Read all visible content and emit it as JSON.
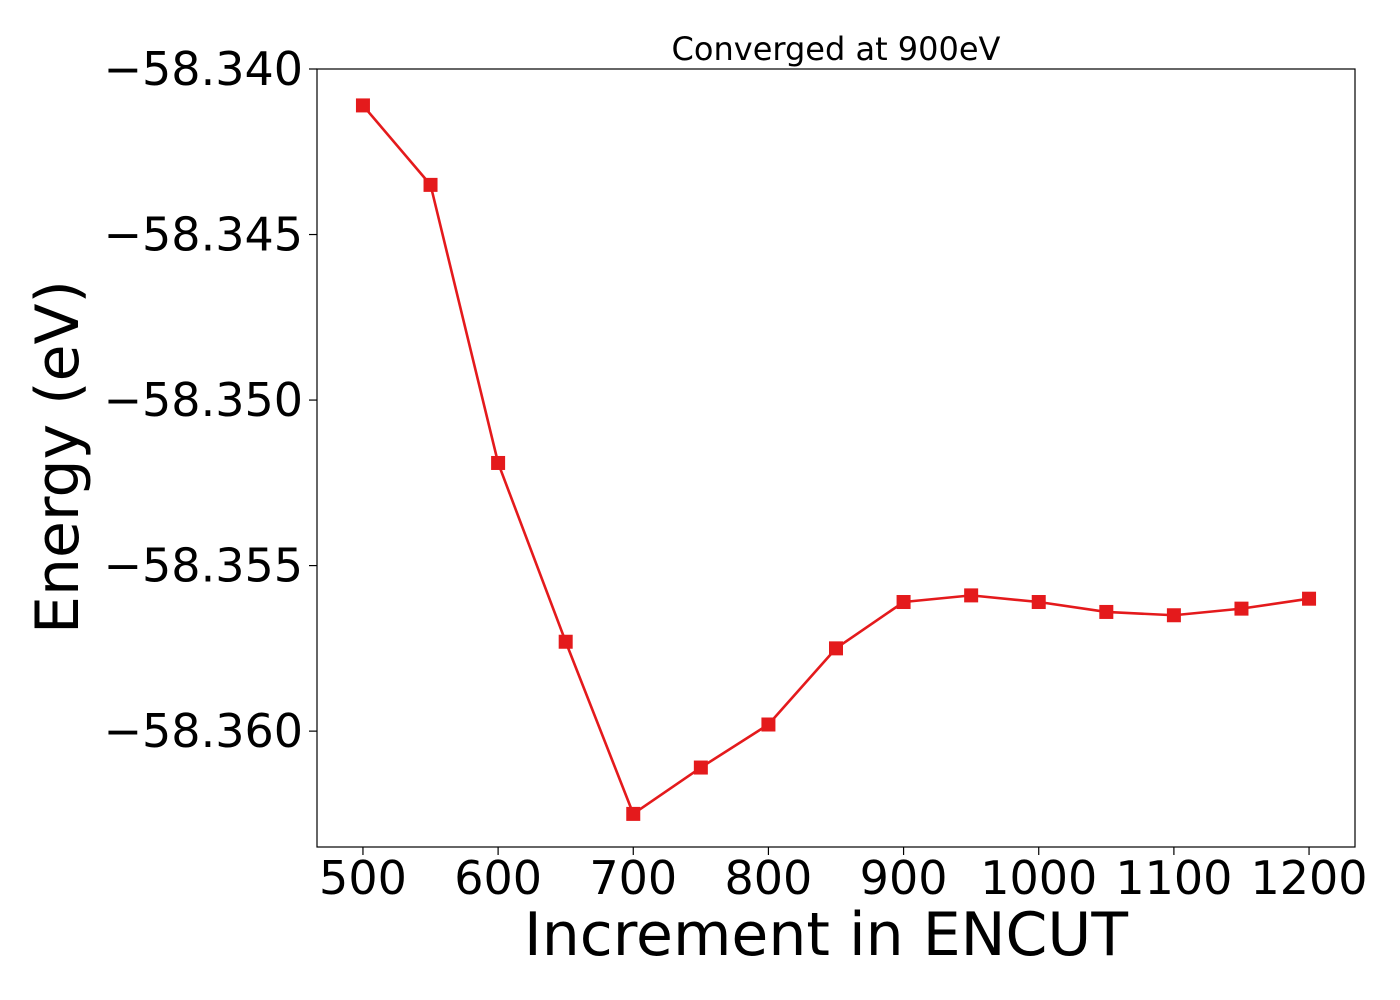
{
  "chart_data": {
    "type": "line",
    "title": "Converged at 900eV",
    "xlabel": "Increment in ENCUT",
    "ylabel": "Energy (eV)",
    "x": [
      500,
      550,
      600,
      650,
      700,
      750,
      800,
      850,
      900,
      950,
      1000,
      1050,
      1100,
      1150,
      1200
    ],
    "series": [
      {
        "values": [
          -58.3411,
          -58.3435,
          -58.3519,
          -58.3573,
          -58.3625,
          -58.3611,
          -58.3598,
          -58.3575,
          -58.3561,
          -58.3559,
          -58.3561,
          -58.3564,
          -58.3565,
          -58.3563,
          -58.356
        ],
        "color": "#e41a1c",
        "marker": "square"
      }
    ],
    "xlim": [
      466,
      1234
    ],
    "ylim": [
      -58.3635,
      -58.34
    ],
    "xticks": [
      500,
      600,
      700,
      800,
      900,
      1000,
      1100,
      1200
    ],
    "xtick_labels": [
      "500",
      "600",
      "700",
      "800",
      "900",
      "1000",
      "1100",
      "1200"
    ],
    "yticks": [
      -58.34,
      -58.345,
      -58.35,
      -58.355,
      -58.36
    ],
    "ytick_labels": [
      "−58.340",
      "−58.345",
      "−58.350",
      "−58.355",
      "−58.360"
    ],
    "grid": false,
    "legend": "none"
  }
}
